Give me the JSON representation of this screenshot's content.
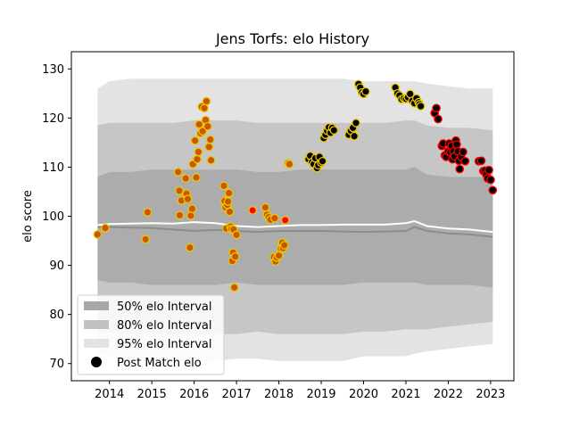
{
  "chart_data": {
    "type": "scatter",
    "title": "Jens Torfs: elo History",
    "xlabel": "",
    "ylabel": "elo score",
    "xlim": [
      2013.1,
      2023.55
    ],
    "ylim": [
      66.5,
      133.5
    ],
    "xticks": [
      2014,
      2015,
      2016,
      2017,
      2018,
      2019,
      2020,
      2021,
      2022,
      2023
    ],
    "yticks": [
      70,
      80,
      90,
      100,
      110,
      120,
      130
    ],
    "grid": false,
    "legend_position": "lower-left",
    "legend": [
      {
        "label": "50% elo Interval",
        "kind": "band",
        "color": "#a8a8a8"
      },
      {
        "label": "80% elo Interval",
        "kind": "band",
        "color": "#c2c2c2"
      },
      {
        "label": "95% elo Interval",
        "kind": "band",
        "color": "#e3e3e3"
      },
      {
        "label": "Post Match elo",
        "kind": "marker",
        "color": "#000000"
      }
    ],
    "bands": {
      "x": [
        2013.72,
        2014.0,
        2014.5,
        2015.0,
        2015.5,
        2016.0,
        2016.5,
        2017.0,
        2017.5,
        2018.0,
        2018.5,
        2019.0,
        2019.5,
        2020.0,
        2020.5,
        2021.0,
        2021.2,
        2021.5,
        2022.0,
        2022.5,
        2023.05
      ],
      "p95": [
        {
          "lower": 72,
          "upper": 126
        },
        {
          "lower": 71.5,
          "upper": 127.5
        },
        {
          "lower": 71,
          "upper": 128
        },
        {
          "lower": 70.5,
          "upper": 128
        },
        {
          "lower": 70.5,
          "upper": 128
        },
        {
          "lower": 70.5,
          "upper": 128
        },
        {
          "lower": 70.5,
          "upper": 128
        },
        {
          "lower": 71,
          "upper": 128
        },
        {
          "lower": 71,
          "upper": 128
        },
        {
          "lower": 70.5,
          "upper": 128
        },
        {
          "lower": 70.5,
          "upper": 128
        },
        {
          "lower": 70.5,
          "upper": 128
        },
        {
          "lower": 70.5,
          "upper": 128
        },
        {
          "lower": 71.5,
          "upper": 127.5
        },
        {
          "lower": 71.5,
          "upper": 127.5
        },
        {
          "lower": 71.5,
          "upper": 127.5
        },
        {
          "lower": 72,
          "upper": 127.5
        },
        {
          "lower": 72.5,
          "upper": 127
        },
        {
          "lower": 73,
          "upper": 126.5
        },
        {
          "lower": 73.5,
          "upper": 126
        },
        {
          "lower": 74,
          "upper": 126
        }
      ],
      "p80": [
        {
          "lower": 76.5,
          "upper": 118.5
        },
        {
          "lower": 76.5,
          "upper": 119
        },
        {
          "lower": 76,
          "upper": 119
        },
        {
          "lower": 76,
          "upper": 119
        },
        {
          "lower": 76,
          "upper": 119
        },
        {
          "lower": 76,
          "upper": 119.5
        },
        {
          "lower": 76,
          "upper": 119.5
        },
        {
          "lower": 76,
          "upper": 119.5
        },
        {
          "lower": 76.5,
          "upper": 119
        },
        {
          "lower": 76,
          "upper": 119
        },
        {
          "lower": 76,
          "upper": 119
        },
        {
          "lower": 76,
          "upper": 119
        },
        {
          "lower": 76,
          "upper": 119
        },
        {
          "lower": 76.5,
          "upper": 119
        },
        {
          "lower": 76.5,
          "upper": 119
        },
        {
          "lower": 77,
          "upper": 119.5
        },
        {
          "lower": 77,
          "upper": 119.5
        },
        {
          "lower": 77,
          "upper": 118.5
        },
        {
          "lower": 77.5,
          "upper": 118
        },
        {
          "lower": 78,
          "upper": 118
        },
        {
          "lower": 78.5,
          "upper": 117.5
        }
      ],
      "p50": [
        {
          "lower": 87,
          "upper": 108
        },
        {
          "lower": 86.5,
          "upper": 109
        },
        {
          "lower": 86.5,
          "upper": 109
        },
        {
          "lower": 86,
          "upper": 109.5
        },
        {
          "lower": 86,
          "upper": 109.5
        },
        {
          "lower": 86,
          "upper": 109.5
        },
        {
          "lower": 86,
          "upper": 109.5
        },
        {
          "lower": 86.5,
          "upper": 109.5
        },
        {
          "lower": 86,
          "upper": 109
        },
        {
          "lower": 86,
          "upper": 109
        },
        {
          "lower": 86,
          "upper": 109.5
        },
        {
          "lower": 86,
          "upper": 109.5
        },
        {
          "lower": 86,
          "upper": 109.5
        },
        {
          "lower": 86.5,
          "upper": 109.5
        },
        {
          "lower": 86.5,
          "upper": 109.5
        },
        {
          "lower": 86.5,
          "upper": 109.5
        },
        {
          "lower": 86.5,
          "upper": 110
        },
        {
          "lower": 86,
          "upper": 108.5
        },
        {
          "lower": 86,
          "upper": 108
        },
        {
          "lower": 86,
          "upper": 108
        },
        {
          "lower": 85.5,
          "upper": 108
        }
      ]
    },
    "median_lines": [
      {
        "name": "white-line",
        "color": "#ffffff",
        "x": [
          2013.72,
          2014.0,
          2014.5,
          2015.0,
          2015.5,
          2016.0,
          2016.5,
          2017.0,
          2017.5,
          2018.0,
          2018.5,
          2019.0,
          2019.5,
          2020.0,
          2020.5,
          2021.0,
          2021.2,
          2021.5,
          2022.0,
          2022.5,
          2023.05
        ],
        "y": [
          98.2,
          98.4,
          98.5,
          98.6,
          98.5,
          98.8,
          98.6,
          98.0,
          97.8,
          98.0,
          98.2,
          98.2,
          98.3,
          98.3,
          98.3,
          98.6,
          99.0,
          98.0,
          97.5,
          97.3,
          96.8
        ]
      },
      {
        "name": "gray-line",
        "color": "#8c8c8c",
        "x": [
          2013.72,
          2014.0,
          2014.5,
          2015.0,
          2015.5,
          2016.0,
          2016.5,
          2017.0,
          2017.5,
          2018.0,
          2018.5,
          2019.0,
          2019.5,
          2020.0,
          2020.5,
          2021.0,
          2021.2,
          2021.5,
          2022.0,
          2022.5,
          2023.05
        ],
        "y": [
          97.8,
          97.8,
          97.7,
          97.6,
          97.3,
          97.0,
          97.2,
          97.0,
          96.8,
          97.0,
          97.0,
          97.0,
          96.9,
          96.8,
          96.9,
          97.0,
          97.8,
          97.0,
          96.5,
          96.3,
          95.8
        ]
      }
    ],
    "series": [
      {
        "face": "#cc5500",
        "edge": "#e8c800",
        "points": [
          [
            2013.72,
            96.3
          ],
          [
            2013.9,
            97.6
          ],
          [
            2014.85,
            95.3
          ],
          [
            2014.9,
            100.8
          ],
          [
            2015.62,
            109.0
          ],
          [
            2015.65,
            105.2
          ],
          [
            2015.66,
            100.2
          ],
          [
            2015.7,
            103.2
          ],
          [
            2015.8,
            107.7
          ],
          [
            2015.82,
            104.6
          ],
          [
            2015.85,
            103.5
          ],
          [
            2015.9,
            93.6
          ],
          [
            2015.92,
            100.1
          ],
          [
            2015.95,
            101.5
          ],
          [
            2015.97,
            110.6
          ],
          [
            2016.02,
            115.4
          ],
          [
            2016.05,
            107.9
          ],
          [
            2016.07,
            111.6
          ],
          [
            2016.1,
            113.1
          ],
          [
            2016.12,
            118.7
          ],
          [
            2016.15,
            116.9
          ],
          [
            2016.18,
            122.3
          ],
          [
            2016.2,
            117.3
          ],
          [
            2016.24,
            122.0
          ],
          [
            2016.27,
            119.6
          ],
          [
            2016.29,
            123.4
          ],
          [
            2016.32,
            118.3
          ],
          [
            2016.35,
            114.1
          ],
          [
            2016.38,
            115.6
          ],
          [
            2016.4,
            111.4
          ],
          [
            2016.7,
            106.2
          ],
          [
            2016.72,
            103.1
          ],
          [
            2016.74,
            101.8
          ],
          [
            2016.76,
            97.5
          ],
          [
            2016.78,
            102.3
          ],
          [
            2016.8,
            103.0
          ],
          [
            2016.82,
            104.7
          ],
          [
            2016.84,
            100.9
          ],
          [
            2016.86,
            97.9
          ],
          [
            2016.88,
            97.4
          ],
          [
            2016.9,
            90.9
          ],
          [
            2016.92,
            92.6
          ],
          [
            2016.93,
            97.3
          ],
          [
            2016.95,
            85.5
          ],
          [
            2016.97,
            91.8
          ],
          [
            2017.0,
            96.2
          ],
          [
            2017.68,
            101.8
          ],
          [
            2017.72,
            100.3
          ],
          [
            2017.76,
            99.8
          ],
          [
            2017.8,
            99.3
          ],
          [
            2017.88,
            91.7
          ],
          [
            2017.9,
            99.6
          ],
          [
            2017.92,
            90.8
          ],
          [
            2017.95,
            91.6
          ],
          [
            2018.0,
            92.0
          ],
          [
            2018.05,
            93.4
          ],
          [
            2018.08,
            94.6
          ],
          [
            2018.1,
            93.5
          ],
          [
            2018.13,
            94.1
          ],
          [
            2018.22,
            110.8
          ],
          [
            2018.25,
            110.6
          ]
        ]
      },
      {
        "face": "#ff0000",
        "edge": "#e8c800",
        "points": [
          [
            2017.38,
            101.2
          ],
          [
            2018.15,
            99.2
          ]
        ]
      },
      {
        "face": "#000000",
        "edge": "#e8c800",
        "points": [
          [
            2018.7,
            111.6
          ],
          [
            2018.74,
            112.3
          ],
          [
            2018.78,
            111.0
          ],
          [
            2018.82,
            110.6
          ],
          [
            2018.86,
            111.8
          ],
          [
            2018.9,
            109.8
          ],
          [
            2018.93,
            110.4
          ],
          [
            2018.96,
            112.1
          ],
          [
            2019.0,
            110.9
          ],
          [
            2019.03,
            111.2
          ],
          [
            2019.06,
            115.9
          ],
          [
            2019.1,
            116.6
          ],
          [
            2019.14,
            117.4
          ],
          [
            2019.18,
            118.1
          ],
          [
            2019.22,
            117.0
          ],
          [
            2019.26,
            118.0
          ],
          [
            2019.3,
            117.5
          ],
          [
            2019.65,
            116.6
          ],
          [
            2019.7,
            117.4
          ],
          [
            2019.75,
            118.0
          ],
          [
            2019.78,
            116.3
          ],
          [
            2019.82,
            119.0
          ],
          [
            2019.88,
            126.9
          ],
          [
            2019.92,
            126.2
          ],
          [
            2019.96,
            125.2
          ],
          [
            2020.0,
            124.9
          ],
          [
            2020.05,
            125.4
          ],
          [
            2020.75,
            126.2
          ],
          [
            2020.8,
            125.0
          ],
          [
            2020.85,
            124.6
          ],
          [
            2020.9,
            123.8
          ],
          [
            2020.95,
            124.0
          ],
          [
            2021.0,
            123.9
          ],
          [
            2021.05,
            124.2
          ],
          [
            2021.1,
            124.9
          ],
          [
            2021.15,
            123.5
          ],
          [
            2021.2,
            123.0
          ],
          [
            2021.25,
            124.0
          ],
          [
            2021.3,
            123.2
          ],
          [
            2021.32,
            122.8
          ],
          [
            2021.35,
            122.4
          ]
        ]
      },
      {
        "face": "#000000",
        "edge": "#ff0000",
        "points": [
          [
            2021.68,
            121.0
          ],
          [
            2021.72,
            122.0
          ],
          [
            2021.76,
            119.8
          ],
          [
            2021.85,
            114.3
          ],
          [
            2021.88,
            114.8
          ],
          [
            2021.92,
            112.4
          ],
          [
            2021.95,
            112.1
          ],
          [
            2022.0,
            113.2
          ],
          [
            2022.02,
            114.8
          ],
          [
            2022.05,
            113.1
          ],
          [
            2022.08,
            114.3
          ],
          [
            2022.1,
            111.6
          ],
          [
            2022.12,
            113.2
          ],
          [
            2022.15,
            112.2
          ],
          [
            2022.18,
            115.4
          ],
          [
            2022.2,
            114.6
          ],
          [
            2022.23,
            113.2
          ],
          [
            2022.25,
            111.3
          ],
          [
            2022.27,
            109.6
          ],
          [
            2022.3,
            112.1
          ],
          [
            2022.35,
            113.1
          ],
          [
            2022.4,
            111.2
          ],
          [
            2022.72,
            111.2
          ],
          [
            2022.78,
            111.3
          ],
          [
            2022.83,
            109.2
          ],
          [
            2022.87,
            109.3
          ],
          [
            2022.9,
            108.5
          ],
          [
            2022.93,
            107.7
          ],
          [
            2022.96,
            109.4
          ],
          [
            2023.0,
            107.4
          ],
          [
            2023.05,
            105.3
          ]
        ]
      }
    ]
  }
}
